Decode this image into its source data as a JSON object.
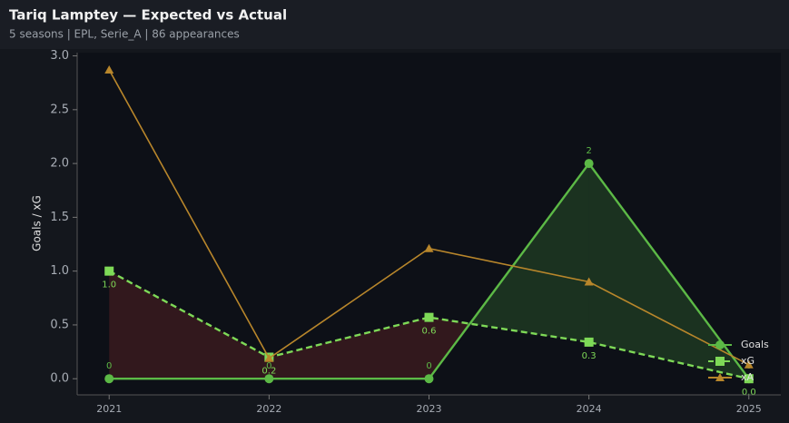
{
  "chart_data": {
    "type": "line",
    "title": "Tariq Lamptey — Expected vs Actual",
    "subtitle": "5 seasons | EPL, Serie_A | 86 appearances",
    "y_label": "Goals / xG",
    "x": [
      2021,
      2022,
      2023,
      2024,
      2025
    ],
    "xlim": [
      2020.8,
      2025.2
    ],
    "xticks": [
      2021,
      2022,
      2023,
      2024,
      2025
    ],
    "ylim": [
      -0.15,
      3.03
    ],
    "yticks": [
      {
        "value": 0,
        "label": "0.0"
      },
      {
        "value": 0.5,
        "label": "0.5"
      },
      {
        "value": 1,
        "label": "1.0"
      },
      {
        "value": 1.5,
        "label": "1.5"
      },
      {
        "value": 2,
        "label": "2.0"
      },
      {
        "value": 2.5,
        "label": "2.5"
      },
      {
        "value": 3,
        "label": "3.0"
      }
    ],
    "legend": "lower right",
    "series": [
      {
        "name": "Goals",
        "color": "#5cb946",
        "linestyle": "solid",
        "marker": "circle",
        "values": [
          0,
          0,
          0,
          2,
          0
        ],
        "value_labels": [
          "0",
          "0",
          "0",
          "2",
          "0"
        ]
      },
      {
        "name": "xG",
        "color": "#7ed957",
        "linestyle": "dashed",
        "marker": "square",
        "values": [
          1.0,
          0.2,
          0.57,
          0.34,
          0.0
        ],
        "value_labels": [
          "1.0",
          "0.2",
          "0.6",
          "0.3",
          "0.0"
        ]
      },
      {
        "name": "xA",
        "color": "#b8862b",
        "linestyle": "solid",
        "marker": "triangle",
        "values": [
          2.87,
          0.19,
          1.21,
          0.9,
          0.13
        ]
      }
    ]
  }
}
